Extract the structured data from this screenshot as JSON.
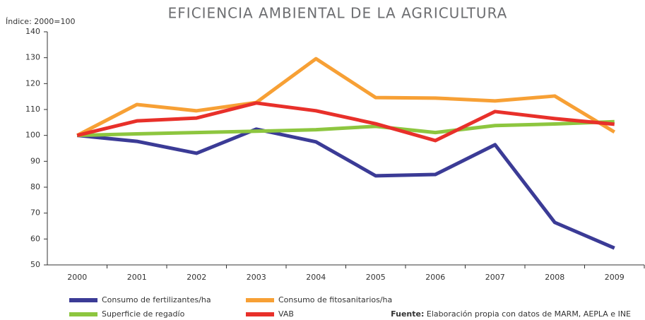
{
  "chart_data": {
    "type": "line",
    "title": "EFICIENCIA AMBIENTAL DE LA AGRICULTURA",
    "y_label": "Índice: 2000=100",
    "categories": [
      "2000",
      "2001",
      "2002",
      "2003",
      "2004",
      "2005",
      "2006",
      "2007",
      "2008",
      "2009"
    ],
    "series": [
      {
        "name": "Consumo de fertilizantes/ha",
        "color": "#3b3b96",
        "values": [
          100,
          97.7,
          93.1,
          102.4,
          97.5,
          84.4,
          84.9,
          96.4,
          66.4,
          56.5
        ]
      },
      {
        "name": "Consumo de fitosanitarios/ha",
        "color": "#f7a035",
        "values": [
          100,
          111.9,
          109.5,
          112.7,
          129.6,
          114.6,
          114.4,
          113.3,
          115.2,
          101.3
        ]
      },
      {
        "name": "Superficie de regadío",
        "color": "#8dc63f",
        "values": [
          100,
          100.6,
          101.1,
          101.6,
          102.2,
          103.5,
          101.1,
          103.8,
          104.4,
          105.3
        ]
      },
      {
        "name": "VAB",
        "color": "#e8302a",
        "values": [
          100,
          105.6,
          106.7,
          112.5,
          109.5,
          104.5,
          98,
          109.2,
          106.5,
          104.3
        ]
      }
    ],
    "ylim": [
      50,
      140
    ],
    "yticks": [
      50,
      60,
      70,
      80,
      90,
      100,
      110,
      120,
      130,
      140
    ],
    "grid": false,
    "source_label": "Fuente:",
    "source": "Elaboración propia con datos de MARM, AEPLA e INE"
  }
}
